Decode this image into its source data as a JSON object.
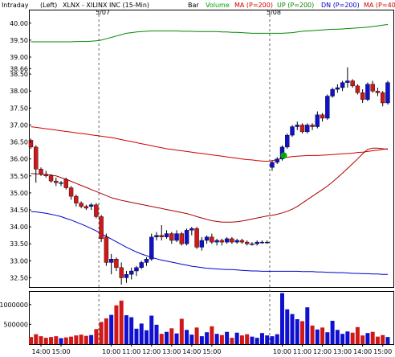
{
  "header": {
    "mode": "Intraday",
    "axis_side": "(Left)",
    "symbol": "XLNX - XILINX INC (15-Min)",
    "style": "Bar",
    "volume": "Volume",
    "ma": "MA (P=200)",
    "up": "UP (P=200)",
    "dn": "DN (P=200)",
    "ma2": "MA (P=40"
  },
  "colors": {
    "up_candle": "#1010d0",
    "down_candle": "#d01818",
    "volume_label": "#00a000",
    "ma_label": "#d00000",
    "up_label": "#008800",
    "dn_label": "#0000d0",
    "ma200_line": "#cc0000",
    "up_band": "#008800",
    "dn_band": "#0000cc",
    "ma40_line": "#aa0000",
    "marker": "#00aa00"
  },
  "chart_data": {
    "type": "candlestick",
    "date_labels": [
      "5/07",
      "5/08"
    ],
    "date_label_index": [
      14,
      48
    ],
    "y_ticks": [
      "40.00",
      "39.50",
      "39.00",
      "38.66",
      "38.50",
      "38.00",
      "37.50",
      "37.00",
      "36.50",
      "36.00",
      "35.50",
      "35.00",
      "34.50",
      "34.00",
      "33.50",
      "33.00",
      "32.50"
    ],
    "ylim": [
      32.25,
      40.35
    ],
    "x_ticks": [
      "14:00",
      "15:00",
      "10:00",
      "11:00",
      "12:00",
      "13:00",
      "14:00",
      "15:00",
      "10:00",
      "11:00",
      "12:00",
      "13:00",
      "14:00",
      "15:00"
    ],
    "x_tick_index": [
      2,
      6,
      16,
      20,
      24,
      28,
      32,
      36,
      50,
      54,
      58,
      62,
      66,
      70
    ],
    "volume_ticks": [
      "1000000",
      "500000"
    ],
    "volume_ylim": [
      0,
      1300000
    ],
    "green_marker": {
      "index": 50,
      "value": 36.1
    },
    "series": [
      {
        "name": "MA (P=200)",
        "values": [
          36.95,
          36.93,
          36.91,
          36.89,
          36.87,
          36.85,
          36.83,
          36.81,
          36.79,
          36.77,
          36.75,
          36.73,
          36.71,
          36.69,
          36.67,
          36.65,
          36.63,
          36.6,
          36.57,
          36.54,
          36.51,
          36.48,
          36.45,
          36.42,
          36.39,
          36.36,
          36.33,
          36.3,
          36.28,
          36.26,
          36.24,
          36.22,
          36.2,
          36.18,
          36.16,
          36.14,
          36.12,
          36.1,
          36.08,
          36.06,
          36.04,
          36.02,
          36.0,
          35.98,
          35.97,
          35.95,
          35.94,
          35.93,
          35.95,
          35.98,
          36.02,
          36.05,
          36.07,
          36.08,
          36.09,
          36.1,
          36.1,
          36.1,
          36.11,
          36.12,
          36.13,
          36.14,
          36.15,
          36.16,
          36.17,
          36.19,
          36.2,
          36.22,
          36.24,
          36.26,
          36.28,
          36.3
        ]
      },
      {
        "name": "UP (P=200)",
        "values": [
          39.45,
          39.45,
          39.45,
          39.45,
          39.45,
          39.45,
          39.45,
          39.45,
          39.45,
          39.46,
          39.46,
          39.46,
          39.47,
          39.48,
          39.5,
          39.54,
          39.58,
          39.62,
          39.66,
          39.7,
          39.72,
          39.74,
          39.75,
          39.76,
          39.77,
          39.77,
          39.77,
          39.77,
          39.77,
          39.77,
          39.76,
          39.76,
          39.76,
          39.75,
          39.75,
          39.75,
          39.75,
          39.75,
          39.74,
          39.74,
          39.73,
          39.73,
          39.72,
          39.71,
          39.7,
          39.7,
          39.7,
          39.7,
          39.7,
          39.7,
          39.7,
          39.71,
          39.72,
          39.74,
          39.76,
          39.77,
          39.78,
          39.79,
          39.8,
          39.81,
          39.82,
          39.82,
          39.83,
          39.84,
          39.85,
          39.86,
          39.87,
          39.88,
          39.9,
          39.92,
          39.94,
          39.96
        ]
      },
      {
        "name": "DN (P=200)",
        "values": [
          34.45,
          34.44,
          34.42,
          34.4,
          34.37,
          34.34,
          34.3,
          34.25,
          34.2,
          34.14,
          34.08,
          34.02,
          33.95,
          33.88,
          33.8,
          33.72,
          33.64,
          33.56,
          33.48,
          33.4,
          33.33,
          33.26,
          33.2,
          33.15,
          33.1,
          33.06,
          33.02,
          32.99,
          32.96,
          32.93,
          32.9,
          32.87,
          32.84,
          32.82,
          32.8,
          32.78,
          32.77,
          32.76,
          32.75,
          32.74,
          32.74,
          32.73,
          32.72,
          32.71,
          32.7,
          32.7,
          32.69,
          32.69,
          32.69,
          32.69,
          32.69,
          32.69,
          32.69,
          32.69,
          32.68,
          32.68,
          32.68,
          32.67,
          32.67,
          32.66,
          32.66,
          32.65,
          32.65,
          32.64,
          32.63,
          32.63,
          32.62,
          32.62,
          32.61,
          32.61,
          32.6,
          32.6
        ]
      },
      {
        "name": "MA (P=40)",
        "values": [
          35.57,
          35.56,
          35.55,
          35.54,
          35.52,
          35.5,
          35.45,
          35.4,
          35.34,
          35.28,
          35.22,
          35.16,
          35.1,
          35.04,
          34.98,
          34.92,
          34.86,
          34.82,
          34.78,
          34.75,
          34.72,
          34.69,
          34.66,
          34.63,
          34.6,
          34.57,
          34.54,
          34.51,
          34.48,
          34.45,
          34.42,
          34.39,
          34.35,
          34.3,
          34.26,
          34.22,
          34.18,
          34.16,
          34.14,
          34.14,
          34.14,
          34.15,
          34.17,
          34.2,
          34.23,
          34.26,
          34.29,
          34.32,
          34.34,
          34.37,
          34.41,
          34.46,
          34.52,
          34.6,
          34.7,
          34.8,
          34.9,
          35.0,
          35.1,
          35.2,
          35.32,
          35.45,
          35.58,
          35.72,
          35.86,
          36.0,
          36.15,
          36.28,
          36.32,
          36.32,
          36.3,
          36.28
        ]
      }
    ],
    "candles": [
      [
        36.55,
        36.6,
        36.3,
        36.35
      ],
      [
        36.35,
        36.4,
        35.3,
        35.7
      ],
      [
        35.7,
        35.75,
        35.5,
        35.55
      ],
      [
        35.55,
        35.65,
        35.45,
        35.5
      ],
      [
        35.5,
        35.55,
        35.3,
        35.35
      ],
      [
        35.35,
        35.45,
        35.2,
        35.3
      ],
      [
        35.3,
        35.35,
        35.2,
        35.3
      ],
      [
        35.4,
        35.45,
        35.1,
        35.15
      ],
      [
        35.15,
        35.2,
        34.8,
        34.9
      ],
      [
        34.9,
        34.95,
        34.6,
        34.7
      ],
      [
        34.7,
        34.75,
        34.55,
        34.6
      ],
      [
        34.6,
        34.65,
        34.5,
        34.55
      ],
      [
        34.6,
        34.7,
        34.5,
        34.65
      ],
      [
        34.65,
        34.7,
        34.25,
        34.3
      ],
      [
        34.3,
        34.35,
        33.55,
        33.65
      ],
      [
        33.7,
        33.8,
        32.85,
        32.95
      ],
      [
        32.95,
        33.2,
        32.6,
        33.05
      ],
      [
        33.05,
        33.1,
        32.7,
        32.8
      ],
      [
        32.8,
        32.95,
        32.3,
        32.5
      ],
      [
        32.5,
        32.7,
        32.35,
        32.6
      ],
      [
        32.6,
        32.8,
        32.45,
        32.7
      ],
      [
        32.7,
        32.85,
        32.55,
        32.8
      ],
      [
        32.8,
        33.0,
        32.75,
        32.95
      ],
      [
        32.95,
        33.1,
        32.85,
        33.05
      ],
      [
        33.05,
        33.8,
        33.0,
        33.7
      ],
      [
        33.7,
        33.85,
        33.6,
        33.75
      ],
      [
        33.75,
        34.05,
        33.6,
        33.7
      ],
      [
        33.7,
        33.9,
        33.65,
        33.8
      ],
      [
        33.8,
        33.85,
        33.5,
        33.6
      ],
      [
        33.6,
        33.9,
        33.55,
        33.8
      ],
      [
        33.8,
        33.85,
        33.45,
        33.5
      ],
      [
        33.5,
        33.95,
        33.45,
        33.9
      ],
      [
        33.9,
        34.0,
        33.75,
        33.95
      ],
      [
        33.95,
        34.0,
        33.35,
        33.4
      ],
      [
        33.4,
        33.7,
        33.3,
        33.6
      ],
      [
        33.6,
        33.75,
        33.5,
        33.7
      ],
      [
        33.7,
        33.8,
        33.5,
        33.55
      ],
      [
        33.55,
        33.65,
        33.45,
        33.6
      ],
      [
        33.6,
        33.65,
        33.45,
        33.55
      ],
      [
        33.55,
        33.7,
        33.5,
        33.65
      ],
      [
        33.65,
        33.7,
        33.5,
        33.55
      ],
      [
        33.55,
        33.65,
        33.5,
        33.6
      ],
      [
        33.6,
        33.65,
        33.5,
        33.55
      ],
      [
        33.55,
        33.6,
        33.45,
        33.5
      ],
      [
        33.5,
        33.55,
        33.45,
        33.5
      ],
      [
        33.5,
        33.6,
        33.45,
        33.55
      ],
      [
        33.55,
        33.6,
        33.5,
        33.55
      ],
      [
        33.55,
        33.6,
        33.5,
        33.55
      ],
      [
        35.75,
        35.95,
        35.65,
        35.9
      ],
      [
        35.9,
        36.05,
        35.85,
        36.0
      ],
      [
        36.0,
        36.4,
        35.95,
        36.35
      ],
      [
        36.35,
        36.75,
        36.3,
        36.7
      ],
      [
        36.7,
        37.0,
        36.65,
        36.95
      ],
      [
        36.95,
        37.1,
        36.85,
        37.0
      ],
      [
        37.0,
        37.05,
        36.75,
        36.8
      ],
      [
        36.8,
        37.05,
        36.75,
        37.0
      ],
      [
        37.0,
        37.05,
        36.85,
        36.95
      ],
      [
        36.95,
        37.4,
        36.9,
        37.3
      ],
      [
        37.3,
        37.35,
        37.1,
        37.2
      ],
      [
        37.2,
        37.9,
        37.15,
        37.85
      ],
      [
        37.85,
        38.1,
        37.8,
        38.05
      ],
      [
        38.05,
        38.2,
        37.95,
        38.1
      ],
      [
        38.1,
        38.3,
        38.0,
        38.25
      ],
      [
        38.25,
        38.7,
        38.1,
        38.3
      ],
      [
        38.3,
        38.35,
        38.1,
        38.15
      ],
      [
        38.15,
        38.2,
        37.9,
        37.95
      ],
      [
        37.95,
        38.05,
        37.65,
        37.75
      ],
      [
        37.75,
        38.25,
        37.7,
        38.2
      ],
      [
        38.2,
        38.3,
        37.95,
        38.0
      ],
      [
        38.0,
        38.1,
        37.85,
        37.95
      ],
      [
        37.95,
        38.0,
        37.55,
        37.65
      ],
      [
        37.65,
        38.3,
        37.6,
        38.25
      ]
    ],
    "volumes": [
      180000,
      250000,
      200000,
      160000,
      180000,
      200000,
      150000,
      170000,
      190000,
      220000,
      240000,
      210000,
      230000,
      380000,
      560000,
      650000,
      740000,
      980000,
      1100000,
      730000,
      680000,
      390000,
      520000,
      350000,
      720000,
      490000,
      260000,
      310000,
      400000,
      270000,
      640000,
      360000,
      240000,
      420000,
      200000,
      300000,
      450000,
      260000,
      230000,
      310000,
      160000,
      290000,
      220000,
      250000,
      190000,
      160000,
      280000,
      220000,
      200000,
      250000,
      1290000,
      880000,
      760000,
      630000,
      580000,
      930000,
      470000,
      370000,
      420000,
      300000,
      590000,
      360000,
      260000,
      320000,
      290000,
      430000,
      220000,
      280000,
      310000,
      190000,
      230000,
      180000
    ]
  }
}
